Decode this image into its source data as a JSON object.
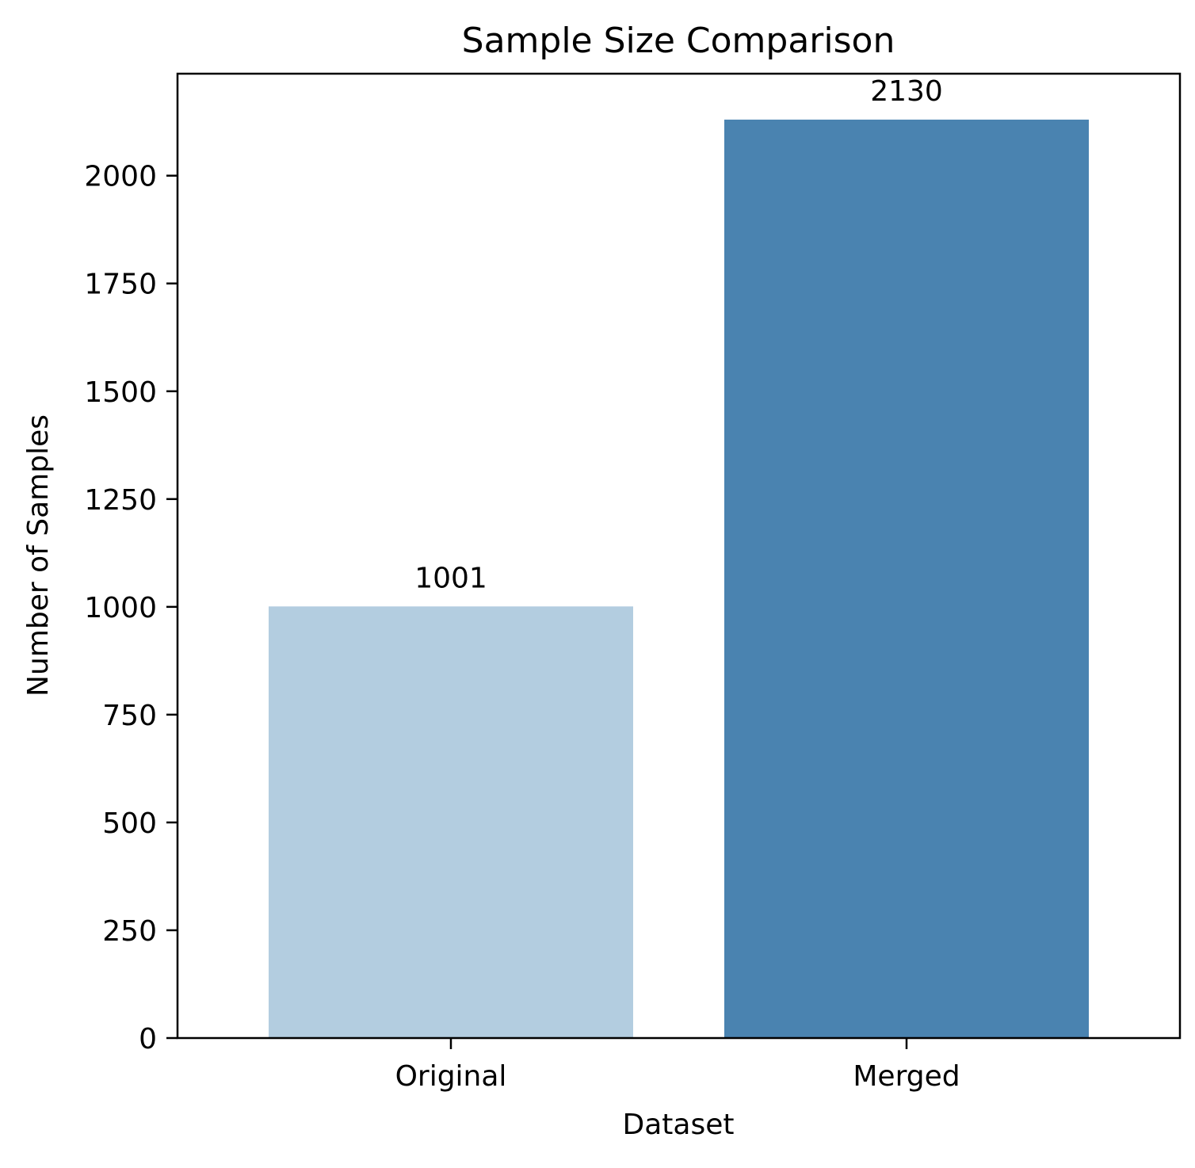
{
  "chart_data": {
    "type": "bar",
    "title": "Sample Size Comparison",
    "xlabel": "Dataset",
    "ylabel": "Number of Samples",
    "categories": [
      "Original",
      "Merged"
    ],
    "values": [
      1001,
      2130
    ],
    "data_labels": [
      "1001",
      "2130"
    ],
    "bar_colors": [
      "#b3cde0",
      "#4a83b0"
    ],
    "yticks": [
      0,
      250,
      500,
      750,
      1000,
      1250,
      1500,
      1750,
      2000
    ],
    "ylim": [
      0,
      2236.5
    ],
    "grid": false,
    "legend": "none"
  }
}
